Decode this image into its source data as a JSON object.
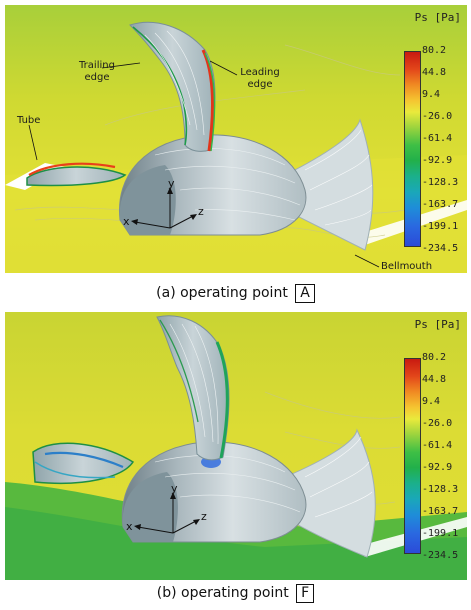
{
  "colorbar": {
    "title": "Ps [Pa]",
    "ticks": [
      "80.2",
      "44.8",
      "9.4",
      "-26.0",
      "-61.4",
      "-92.9",
      "-128.3",
      "-163.7",
      "-199.1",
      "-234.5"
    ]
  },
  "panel_a": {
    "labels": {
      "trailing_edge": "Trailing edge",
      "leading_edge": "Leading edge",
      "tube": "Tube",
      "bellmouth": "Bellmouth"
    },
    "axes": {
      "x": "x",
      "y": "y",
      "z": "z"
    },
    "caption_prefix": "(a) operating point",
    "caption_point": "A"
  },
  "panel_b": {
    "axes": {
      "x": "x",
      "y": "y",
      "z": "z"
    },
    "caption_prefix": "(b) operating point",
    "caption_point": "F"
  },
  "colors": {
    "background_yellow": "#d9dc2c",
    "background_green": "#9ccc38",
    "hub_grey": "#b8c6cc",
    "max_pressure": "#c81a10",
    "min_pressure": "#2b4bd8"
  }
}
